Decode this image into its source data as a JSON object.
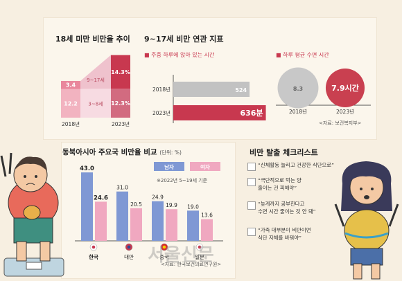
{
  "chart_data": [
    {
      "type": "bar",
      "title": "18세 미만 비만율 추이",
      "categories": [
        "2018년",
        "2023년"
      ],
      "series": [
        {
          "name": "3~8세",
          "values": [
            12.2,
            12.3
          ]
        },
        {
          "name": "9~17세",
          "values": [
            3.4,
            14.3
          ]
        }
      ],
      "value_labels": [
        "12.2",
        "3.4",
        "12.3%",
        "14.3%"
      ]
    },
    {
      "type": "bar",
      "title": "9~17세 비만 연관 지표",
      "subtitle": "주중 하루에 앉아 있는 시간",
      "categories": [
        "2018년",
        "2023년"
      ],
      "values": [
        524,
        636
      ],
      "value_labels": [
        "524",
        "636분"
      ]
    },
    {
      "type": "bar",
      "subtitle": "하루 평균 수면 시간",
      "categories": [
        "2018년",
        "2023년"
      ],
      "values": [
        8.3,
        7.9
      ],
      "value_labels": [
        "8.3",
        "7.9시간"
      ],
      "source": "<자료: 보건복지부>"
    },
    {
      "type": "bar",
      "title": "동북아시아 주요국 비만율 비교",
      "unit": "(단위: %)",
      "categories": [
        "한국",
        "대만",
        "중국",
        "일본"
      ],
      "series": [
        {
          "name": "남자",
          "values": [
            43.0,
            31.0,
            24.9,
            19.0
          ]
        },
        {
          "name": "여자",
          "values": [
            24.6,
            20.5,
            19.9,
            13.6
          ]
        }
      ],
      "value_labels_male": [
        "43.0",
        "31.0",
        "24.9",
        "19.0"
      ],
      "value_labels_female": [
        "24.6",
        "20.5",
        "19.9",
        "13.6"
      ],
      "note": "※2022년 5~19세 기준",
      "source": "<자료: 한국보건의료연구원>"
    }
  ],
  "checklist": {
    "title": "비만 탈출 체크리스트",
    "items": [
      [
        "“신체활동 늘리고 건강한 식단으로”"
      ],
      [
        "“극단적으로 먹는 양",
        "줄이는 건 피해야”"
      ],
      [
        "“늦게까지 공부한다고",
        "수면 시간 줄이는 것 안 돼”"
      ],
      [
        "“가족 대부분이 비만이면",
        "식단 자체를 바꿔야”"
      ]
    ]
  },
  "watermark": "서울신문",
  "colors": {
    "male": "#7f98d4",
    "female": "#f0a8c0",
    "red": "#c8384f",
    "red_light": "#ef9fb0",
    "grey": "#c2c2c2",
    "circle_grey": "#c8c8c8",
    "circle_red": "#c94050"
  }
}
